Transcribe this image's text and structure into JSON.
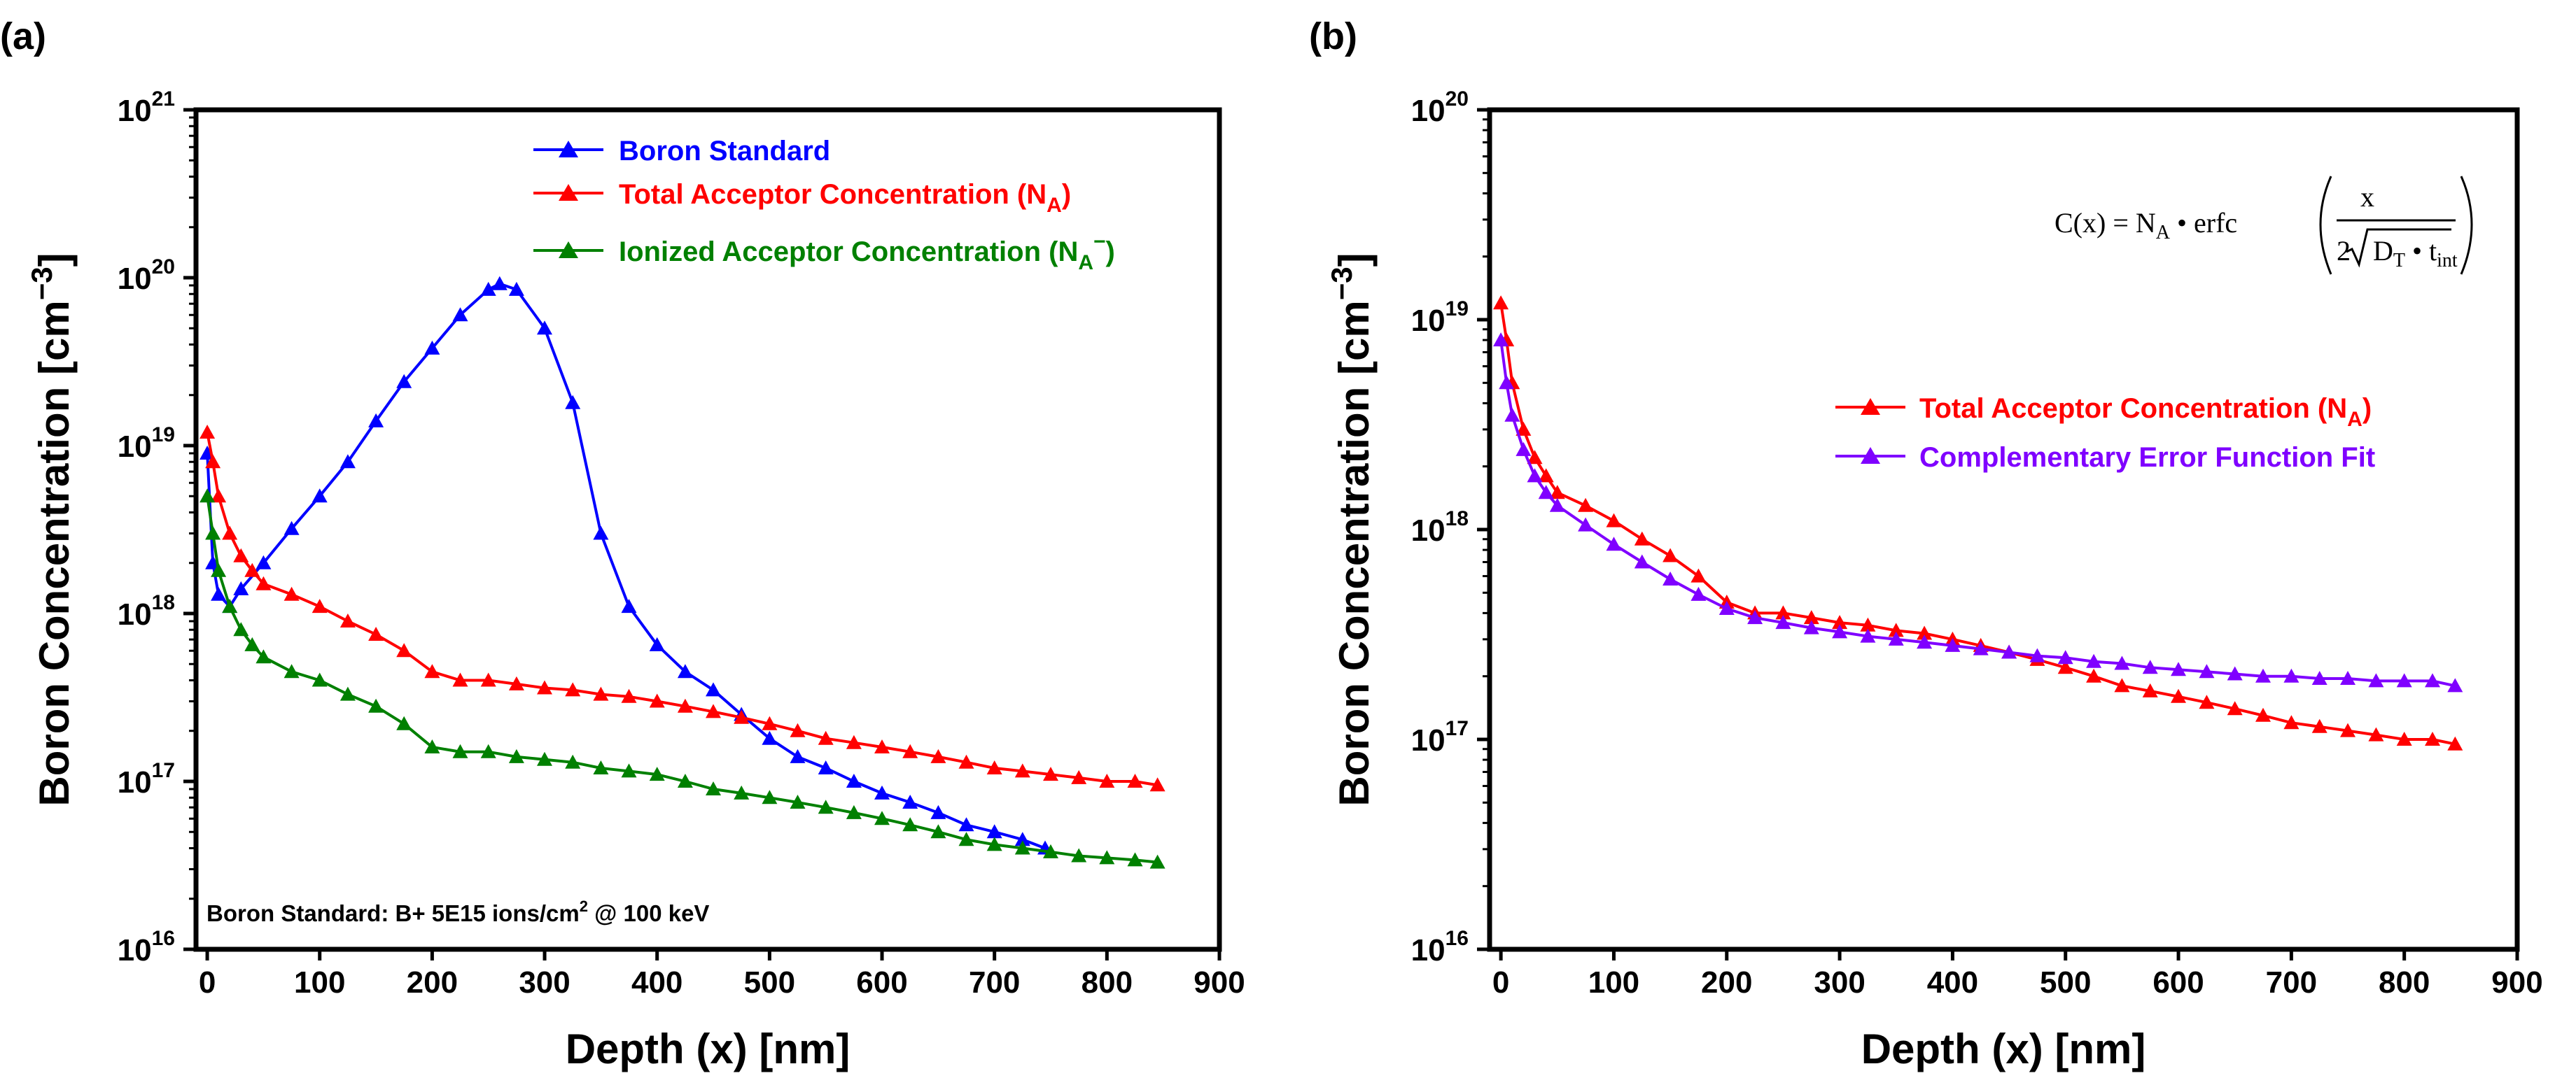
{
  "colors": {
    "blue": "#0000ff",
    "red": "#ff0000",
    "green": "#008000",
    "purple": "#7f00ff",
    "axis": "#000000"
  },
  "chart_data": [
    {
      "panel_label": "(a)",
      "type": "scatter",
      "xlabel": "Depth (x) [nm]",
      "ylabel_main": "Boron Concentration [cm",
      "ylabel_sup": "−3",
      "ylabel_close": "]",
      "xlim": [
        -10,
        900
      ],
      "ylim": [
        1e+16,
        1e+21
      ],
      "yscale": "log",
      "xticks": [
        0,
        100,
        200,
        300,
        400,
        500,
        600,
        700,
        800,
        900
      ],
      "yticks": [
        {
          "value": 1e+16,
          "base": "10",
          "exp": "16"
        },
        {
          "value": 1e+17,
          "base": "10",
          "exp": "17"
        },
        {
          "value": 1e+18,
          "base": "10",
          "exp": "18"
        },
        {
          "value": 1e+19,
          "base": "10",
          "exp": "19"
        },
        {
          "value": 1e+20,
          "base": "10",
          "exp": "20"
        },
        {
          "value": 1e+21,
          "base": "10",
          "exp": "21"
        }
      ],
      "legend_position": "top-right",
      "annotation": {
        "text": "Boron Standard: B+ 5E15 ions/cm",
        "sup": "2",
        "tail": " @ 100 keV"
      },
      "series": [
        {
          "name": "Boron Standard",
          "label_main": "Boron Standard",
          "label_sub": "",
          "label_sup": "",
          "label_tail": "",
          "color": "#0000ff",
          "x": [
            0,
            5,
            10,
            20,
            30,
            50,
            75,
            100,
            125,
            150,
            175,
            200,
            225,
            250,
            260,
            275,
            300,
            325,
            350,
            375,
            400,
            425,
            450,
            475,
            500,
            525,
            550,
            575,
            600,
            625,
            650,
            675,
            700,
            725,
            745
          ],
          "y": [
            9e+18,
            2e+18,
            1.3e+18,
            1.1e+18,
            1.4e+18,
            2e+18,
            3.2e+18,
            5e+18,
            8e+18,
            1.4e+19,
            2.4e+19,
            3.8e+19,
            6e+19,
            8.5e+19,
            9.2e+19,
            8.5e+19,
            5e+19,
            1.8e+19,
            3e+18,
            1.1e+18,
            6.5e+17,
            4.5e+17,
            3.5e+17,
            2.5e+17,
            1.8e+17,
            1.4e+17,
            1.2e+17,
            1e+17,
            8.5e+16,
            7.5e+16,
            6.5e+16,
            5.5e+16,
            5e+16,
            4.5e+16,
            4e+16
          ]
        },
        {
          "name": "Total Acceptor Concentration (NA)",
          "label_main": "Total Acceptor Concentration (N",
          "label_sub": "A",
          "label_sup": "",
          "label_tail": ")",
          "color": "#ff0000",
          "x": [
            0,
            5,
            10,
            20,
            30,
            40,
            50,
            75,
            100,
            125,
            150,
            175,
            200,
            225,
            250,
            275,
            300,
            325,
            350,
            375,
            400,
            425,
            450,
            475,
            500,
            525,
            550,
            575,
            600,
            625,
            650,
            675,
            700,
            725,
            750,
            775,
            800,
            825,
            845
          ],
          "y": [
            1.2e+19,
            8e+18,
            5e+18,
            3e+18,
            2.2e+18,
            1.8e+18,
            1.5e+18,
            1.3e+18,
            1.1e+18,
            9e+17,
            7.5e+17,
            6e+17,
            4.5e+17,
            4e+17,
            4e+17,
            3.8e+17,
            3.6e+17,
            3.5e+17,
            3.3e+17,
            3.2e+17,
            3e+17,
            2.8e+17,
            2.6e+17,
            2.4e+17,
            2.2e+17,
            2e+17,
            1.8e+17,
            1.7e+17,
            1.6e+17,
            1.5e+17,
            1.4e+17,
            1.3e+17,
            1.2e+17,
            1.15e+17,
            1.1e+17,
            1.05e+17,
            1e+17,
            1e+17,
            9.5e+16
          ]
        },
        {
          "name": "Ionized Acceptor Concentration (NA−)",
          "label_main": "Ionized Acceptor Concentration (N",
          "label_sub": "A",
          "label_sup": "−",
          "label_tail": ")",
          "color": "#008000",
          "x": [
            0,
            5,
            10,
            20,
            30,
            40,
            50,
            75,
            100,
            125,
            150,
            175,
            200,
            225,
            250,
            275,
            300,
            325,
            350,
            375,
            400,
            425,
            450,
            475,
            500,
            525,
            550,
            575,
            600,
            625,
            650,
            675,
            700,
            725,
            750,
            775,
            800,
            825,
            845
          ],
          "y": [
            5e+18,
            3e+18,
            1.8e+18,
            1.1e+18,
            8e+17,
            6.5e+17,
            5.5e+17,
            4.5e+17,
            4e+17,
            3.3e+17,
            2.8e+17,
            2.2e+17,
            1.6e+17,
            1.5e+17,
            1.5e+17,
            1.4e+17,
            1.35e+17,
            1.3e+17,
            1.2e+17,
            1.15e+17,
            1.1e+17,
            1e+17,
            9e+16,
            8.5e+16,
            8e+16,
            7.5e+16,
            7e+16,
            6.5e+16,
            6e+16,
            5.5e+16,
            5e+16,
            4.5e+16,
            4.2e+16,
            4e+16,
            3.8e+16,
            3.6e+16,
            3.5e+16,
            3.4e+16,
            3.3e+16
          ]
        }
      ]
    },
    {
      "panel_label": "(b)",
      "type": "scatter",
      "xlabel": "Depth (x) [nm]",
      "ylabel_main": "Boron Concentration [cm",
      "ylabel_sup": "−3",
      "ylabel_close": "]",
      "xlim": [
        -10,
        900
      ],
      "ylim": [
        1e+16,
        1e+20
      ],
      "yscale": "log",
      "xticks": [
        0,
        100,
        200,
        300,
        400,
        500,
        600,
        700,
        800,
        900
      ],
      "yticks": [
        {
          "value": 1e+16,
          "base": "10",
          "exp": "16"
        },
        {
          "value": 1e+17,
          "base": "10",
          "exp": "17"
        },
        {
          "value": 1e+18,
          "base": "10",
          "exp": "18"
        },
        {
          "value": 1e+19,
          "base": "10",
          "exp": "19"
        },
        {
          "value": 1e+20,
          "base": "10",
          "exp": "20"
        }
      ],
      "legend_position": "center-right",
      "formula": {
        "lhs": "C(x) = N",
        "lhs_sub": "A",
        "mid": " • erfc",
        "numerator": "x",
        "den_main": "2",
        "den_D": "D",
        "den_D_sub": "T",
        "den_bullet": " • t",
        "den_t_sub": "int"
      },
      "series": [
        {
          "name": "Total Acceptor Concentration (NA)",
          "label_main": "Total Acceptor Concentration (N",
          "label_sub": "A",
          "label_sup": "",
          "label_tail": ")",
          "color": "#ff0000",
          "x": [
            0,
            5,
            10,
            20,
            30,
            40,
            50,
            75,
            100,
            125,
            150,
            175,
            200,
            225,
            250,
            275,
            300,
            325,
            350,
            375,
            400,
            425,
            450,
            475,
            500,
            525,
            550,
            575,
            600,
            625,
            650,
            675,
            700,
            725,
            750,
            775,
            800,
            825,
            845
          ],
          "y": [
            1.2e+19,
            8e+18,
            5e+18,
            3e+18,
            2.2e+18,
            1.8e+18,
            1.5e+18,
            1.3e+18,
            1.1e+18,
            9e+17,
            7.5e+17,
            6e+17,
            4.5e+17,
            4e+17,
            4e+17,
            3.8e+17,
            3.6e+17,
            3.5e+17,
            3.3e+17,
            3.2e+17,
            3e+17,
            2.8e+17,
            2.6e+17,
            2.4e+17,
            2.2e+17,
            2e+17,
            1.8e+17,
            1.7e+17,
            1.6e+17,
            1.5e+17,
            1.4e+17,
            1.3e+17,
            1.2e+17,
            1.15e+17,
            1.1e+17,
            1.05e+17,
            1e+17,
            1e+17,
            9.5e+16
          ]
        },
        {
          "name": "Complementary Error Function Fit",
          "label_main": "Complementary Error Function Fit",
          "label_sub": "",
          "label_sup": "",
          "label_tail": "",
          "color": "#7f00ff",
          "x": [
            0,
            5,
            10,
            20,
            30,
            40,
            50,
            75,
            100,
            125,
            150,
            175,
            200,
            225,
            250,
            275,
            300,
            325,
            350,
            375,
            400,
            425,
            450,
            475,
            500,
            525,
            550,
            575,
            600,
            625,
            650,
            675,
            700,
            725,
            750,
            775,
            800,
            825,
            845
          ],
          "y": [
            8e+18,
            5e+18,
            3.5e+18,
            2.4e+18,
            1.8e+18,
            1.5e+18,
            1.3e+18,
            1.05e+18,
            8.5e+17,
            7e+17,
            5.8e+17,
            4.9e+17,
            4.2e+17,
            3.8e+17,
            3.6e+17,
            3.4e+17,
            3.25e+17,
            3.1e+17,
            3e+17,
            2.9e+17,
            2.8e+17,
            2.7e+17,
            2.6e+17,
            2.5e+17,
            2.45e+17,
            2.35e+17,
            2.3e+17,
            2.2e+17,
            2.15e+17,
            2.1e+17,
            2.05e+17,
            2e+17,
            2e+17,
            1.95e+17,
            1.95e+17,
            1.9e+17,
            1.9e+17,
            1.9e+17,
            1.8e+17
          ]
        }
      ]
    }
  ]
}
